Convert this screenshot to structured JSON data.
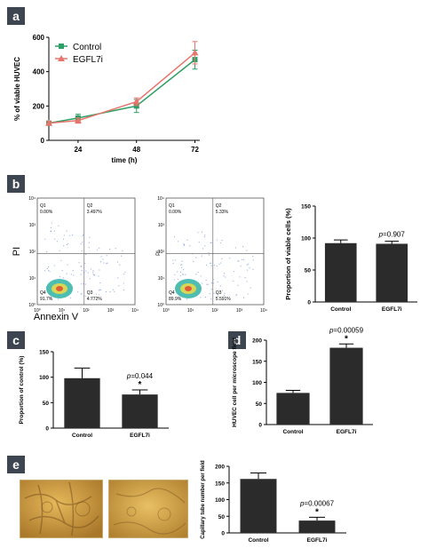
{
  "panels": {
    "a": "a",
    "b": "b",
    "c": "c",
    "d": "d",
    "e": "e"
  },
  "colors": {
    "control": "#2e9e66",
    "egfl7i": "#e8756b",
    "bar": "#2b2b2b",
    "flow": "#4a6fd1",
    "micro": "#d4a447"
  },
  "chart_data": [
    {
      "id": "a",
      "type": "line",
      "xlabel": "time (h)",
      "ylabel": "% of viable HUVEC",
      "x_ticks": [
        24,
        48,
        72
      ],
      "y_ticks": [
        0,
        200,
        400,
        600
      ],
      "xlim": [
        12,
        74
      ],
      "ylim": [
        0,
        600
      ],
      "legend_position": "top-left",
      "series": [
        {
          "name": "Control",
          "x": [
            12,
            24,
            48,
            72
          ],
          "y": [
            100,
            130,
            200,
            470
          ],
          "err": [
            12,
            22,
            38,
            55
          ],
          "color": "#2e9e66",
          "marker": "square"
        },
        {
          "name": "EGFL7i",
          "x": [
            12,
            24,
            48,
            72
          ],
          "y": [
            100,
            115,
            225,
            510
          ],
          "err": [
            10,
            15,
            22,
            65
          ],
          "color": "#e8756b",
          "marker": "triangle"
        }
      ]
    },
    {
      "id": "b-flow",
      "type": "scatter",
      "xlabel": "Annexin V",
      "ylabel": "PI",
      "plots": [
        {
          "Q1": "Q1",
          "Q1v": "0.00%",
          "Q2": "Q2",
          "Q2v": "3.497%",
          "Q3": "Q3",
          "Q3v": "4.772%",
          "Q4": "Q4",
          "Q4v": "91.7%"
        },
        {
          "Q1": "Q1",
          "Q1v": "0.00%",
          "Q2": "Q2",
          "Q2v": "5.33%",
          "Q3": "Q3",
          "Q3v": "5.591%",
          "Q4": "Q4",
          "Q4v": "89.9%"
        }
      ]
    },
    {
      "id": "b",
      "type": "bar",
      "categories": [
        "Control",
        "EGFL7i"
      ],
      "values": [
        92,
        91
      ],
      "err": [
        5,
        4
      ],
      "ylabel": "Proportion of viable cells (%)",
      "y_ticks": [
        0,
        50,
        100,
        150
      ],
      "ylim": [
        0,
        150
      ],
      "annotation": "p=0.907"
    },
    {
      "id": "c",
      "type": "bar",
      "categories": [
        "Control",
        "EGFL7i"
      ],
      "values": [
        98,
        66
      ],
      "err": [
        20,
        9
      ],
      "ylabel": "Proportion of control (%)",
      "y_ticks": [
        0,
        50,
        100,
        150
      ],
      "ylim": [
        0,
        150
      ],
      "annotation": "p=0.044",
      "star": "*"
    },
    {
      "id": "d",
      "type": "bar",
      "categories": [
        "Control",
        "EGFL7i"
      ],
      "values": [
        75,
        182
      ],
      "err": [
        6,
        9
      ],
      "ylabel": "HUVEC cell per microscope field",
      "y_ticks": [
        0,
        50,
        100,
        150,
        200
      ],
      "ylim": [
        0,
        200
      ],
      "annotation": "p=0.00059",
      "star": "*"
    },
    {
      "id": "e",
      "type": "bar",
      "categories": [
        "Control",
        "EGFL7i"
      ],
      "values": [
        162,
        37
      ],
      "err": [
        18,
        10
      ],
      "ylabel": "Capillary tube number per field",
      "y_ticks": [
        0,
        50,
        100,
        150,
        200
      ],
      "ylim": [
        0,
        200
      ],
      "annotation": "p=0.00067",
      "star": "*"
    }
  ]
}
